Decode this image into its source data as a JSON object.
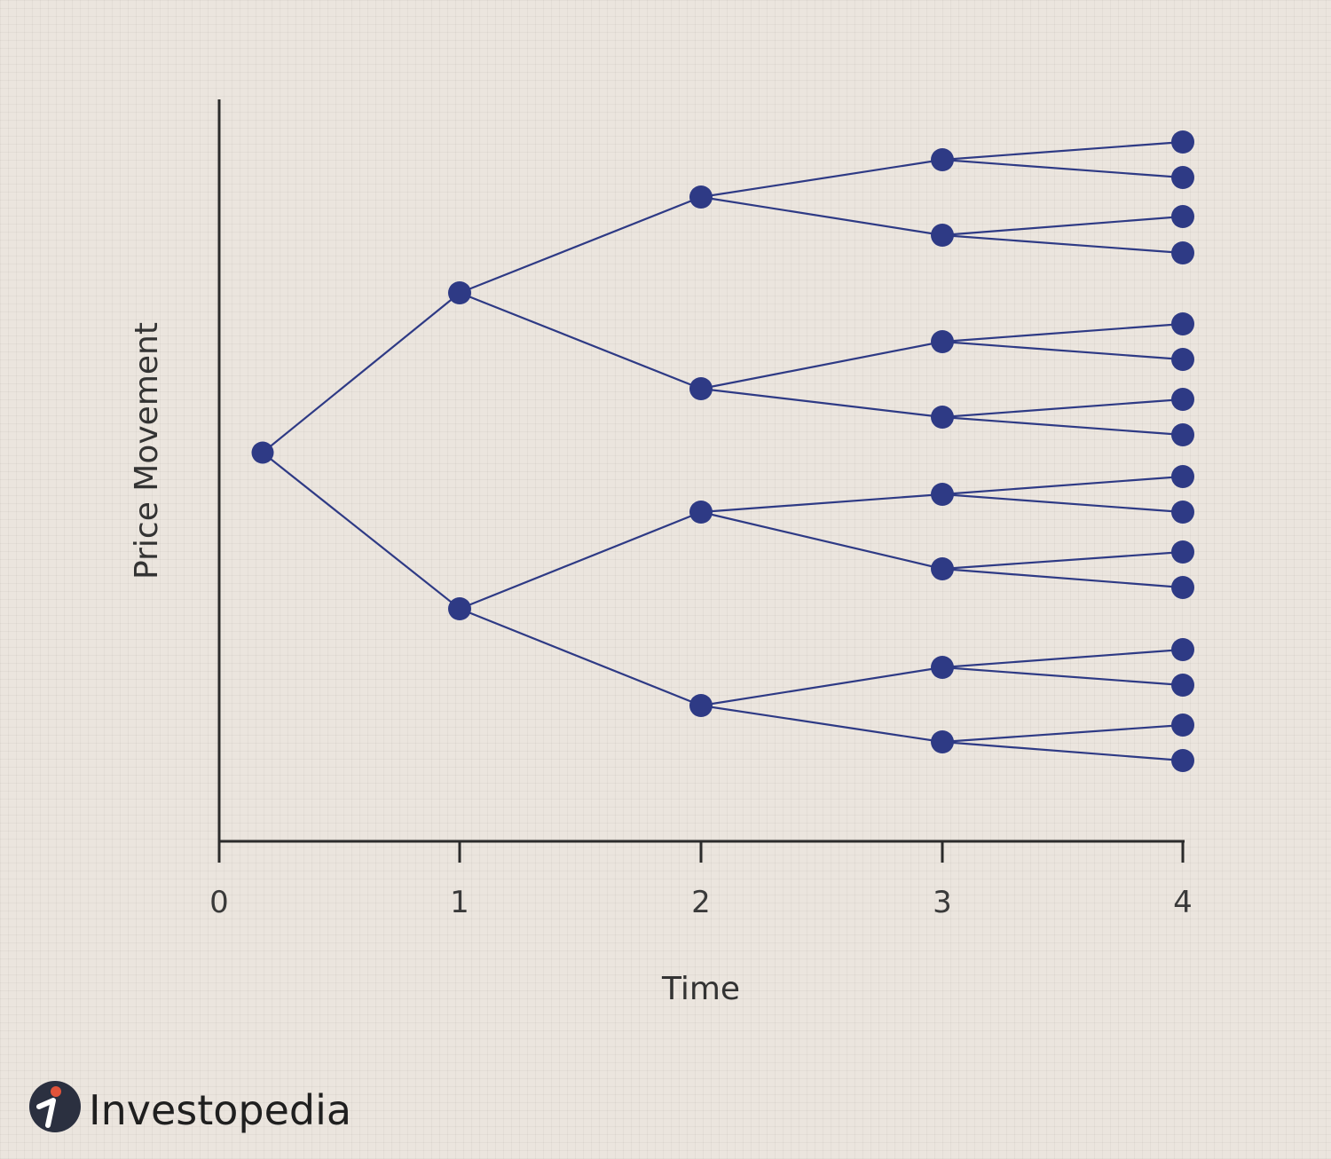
{
  "x_axis": {
    "title": "Time",
    "ticks": [
      "0",
      "1",
      "2",
      "3",
      "4"
    ]
  },
  "y_axis": {
    "title": "Price Movement"
  },
  "tree": {
    "type": "binomial",
    "steps": 4,
    "colors": {
      "node": "#2e3a85",
      "edge": "#2e3a85",
      "axis": "#2b2b2b"
    }
  },
  "brand": {
    "name": "Investopedia",
    "logo_icon": "investopedia-logo-icon",
    "logo_colors": {
      "circle": "#2b3040",
      "accent": "#e2533a"
    }
  }
}
